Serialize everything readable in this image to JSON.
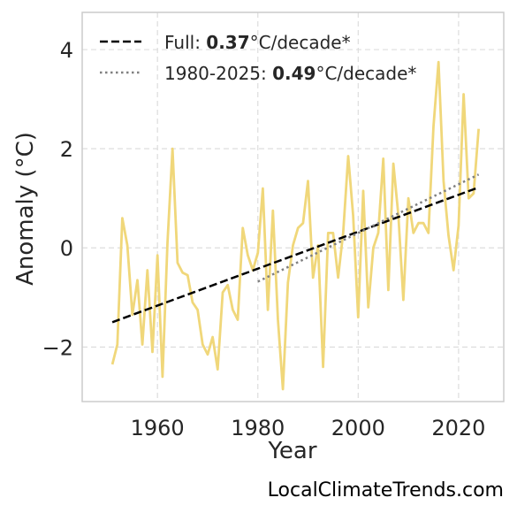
{
  "chart_data": {
    "type": "line",
    "xlabel": "Year",
    "ylabel": "Anomaly (°C)",
    "xlim": [
      1945,
      2029
    ],
    "ylim": [
      -3.1,
      4.75
    ],
    "xticks": [
      1960,
      1980,
      2000,
      2020
    ],
    "yticks": [
      -2,
      0,
      2,
      4
    ],
    "ytick_labels": [
      "−2",
      "0",
      "2",
      "4"
    ],
    "grid": true,
    "legend_position": "top-left",
    "series": [
      {
        "color": "#f0d77a",
        "x": [
          1951,
          1952,
          1953,
          1954,
          1955,
          1956,
          1957,
          1958,
          1959,
          1960,
          1961,
          1962,
          1963,
          1964,
          1965,
          1966,
          1967,
          1968,
          1969,
          1970,
          1971,
          1972,
          1973,
          1974,
          1975,
          1976,
          1977,
          1978,
          1979,
          1980,
          1981,
          1982,
          1983,
          1984,
          1985,
          1986,
          1987,
          1988,
          1989,
          1990,
          1991,
          1992,
          1993,
          1994,
          1995,
          1996,
          1997,
          1998,
          1999,
          2000,
          2001,
          2002,
          2003,
          2004,
          2005,
          2006,
          2007,
          2008,
          2009,
          2010,
          2011,
          2012,
          2013,
          2014,
          2015,
          2016,
          2017,
          2018,
          2019,
          2020,
          2021,
          2022,
          2023,
          2024
        ],
        "y": [
          -2.35,
          -1.95,
          0.6,
          0.05,
          -1.35,
          -0.65,
          -1.95,
          -0.45,
          -2.1,
          -0.15,
          -2.6,
          0.1,
          2.0,
          -0.3,
          -0.5,
          -0.55,
          -1.1,
          -1.25,
          -1.95,
          -2.15,
          -1.8,
          -2.45,
          -0.9,
          -0.75,
          -1.25,
          -1.45,
          0.4,
          -0.15,
          -0.45,
          -0.1,
          1.2,
          -1.25,
          0.75,
          -1.45,
          -2.85,
          -0.7,
          0.05,
          0.4,
          0.5,
          1.35,
          -0.6,
          0.05,
          -2.4,
          0.3,
          0.3,
          -0.6,
          0.3,
          1.85,
          0.65,
          -1.4,
          1.15,
          -1.2,
          0.0,
          0.3,
          1.8,
          -0.85,
          1.7,
          0.65,
          -1.05,
          1.0,
          0.3,
          0.5,
          0.5,
          0.3,
          2.45,
          3.75,
          1.35,
          0.25,
          -0.45,
          0.45,
          3.1,
          1.0,
          1.1,
          2.4
        ]
      },
      {
        "name": "Full",
        "style": "dashed",
        "color": "#000000",
        "x": [
          1951,
          2024
        ],
        "y": [
          -1.5,
          1.22
        ]
      },
      {
        "name": "1980-2025",
        "style": "dotted",
        "color": "#808080",
        "x": [
          1980,
          2024
        ],
        "y": [
          -0.68,
          1.48
        ]
      }
    ],
    "legend": [
      {
        "prefix": "Full: ",
        "value": "0.37",
        "suffix": "°C/decade*",
        "style": "dashed",
        "color": "#000000"
      },
      {
        "prefix": "1980-2025: ",
        "value": "0.49",
        "suffix": "°C/decade*",
        "style": "dotted",
        "color": "#808080"
      }
    ]
  },
  "credit": "LocalClimateTrends.com"
}
